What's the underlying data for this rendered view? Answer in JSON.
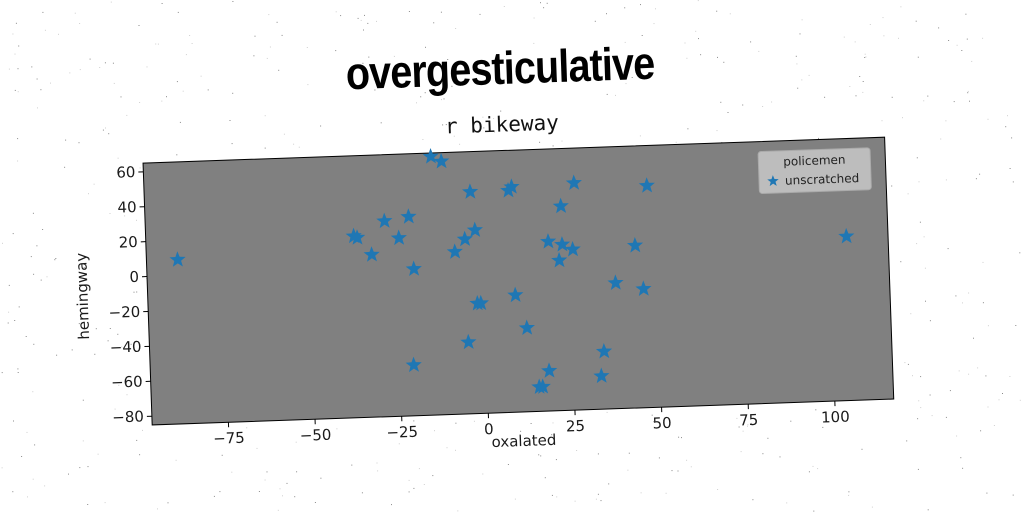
{
  "suptitle": "overgesticulative",
  "chart_data": {
    "type": "scatter",
    "title": "r bikeway",
    "xlabel": "oxalated",
    "ylabel": "hemingway",
    "xlim": [
      -97,
      117
    ],
    "ylim": [
      -85,
      65
    ],
    "xticks": [
      -75,
      -50,
      -25,
      0,
      25,
      50,
      75,
      100
    ],
    "xtick_labels": [
      "−75",
      "−50",
      "−25",
      "0",
      "25",
      "50",
      "75",
      "100"
    ],
    "yticks": [
      -80,
      -60,
      -40,
      -20,
      0,
      20,
      40,
      60
    ],
    "ytick_labels": [
      "−80",
      "−60",
      "−40",
      "−20",
      "0",
      "20",
      "40",
      "60"
    ],
    "grid": false,
    "legend": {
      "title": "policemen",
      "placement": "top-right"
    },
    "colors": {
      "marker": "#1f77b4",
      "axes_bg": "#808080"
    },
    "series": [
      {
        "name": "unscratched",
        "marker": "star",
        "points": [
          {
            "x": -88,
            "y": 9
          },
          {
            "x": -37,
            "y": 19
          },
          {
            "x": -36,
            "y": 18
          },
          {
            "x": -32,
            "y": 8
          },
          {
            "x": -28,
            "y": 27
          },
          {
            "x": -24,
            "y": 17
          },
          {
            "x": -21,
            "y": 29
          },
          {
            "x": -20,
            "y": -1
          },
          {
            "x": -21,
            "y": -56
          },
          {
            "x": -14,
            "y": 63
          },
          {
            "x": -11,
            "y": 60
          },
          {
            "x": -8,
            "y": 8
          },
          {
            "x": -5,
            "y": 15
          },
          {
            "x": -5,
            "y": -44
          },
          {
            "x": -3,
            "y": 42
          },
          {
            "x": -2,
            "y": 20
          },
          {
            "x": -2,
            "y": -22
          },
          {
            "x": -1,
            "y": -22
          },
          {
            "x": 8,
            "y": 42
          },
          {
            "x": 9,
            "y": 44
          },
          {
            "x": 9,
            "y": -18
          },
          {
            "x": 12,
            "y": -37
          },
          {
            "x": 15,
            "y": -71
          },
          {
            "x": 16,
            "y": -71
          },
          {
            "x": 18,
            "y": -62
          },
          {
            "x": 19,
            "y": 12
          },
          {
            "x": 22,
            "y": 1
          },
          {
            "x": 23,
            "y": 10
          },
          {
            "x": 23,
            "y": 32
          },
          {
            "x": 26,
            "y": 7
          },
          {
            "x": 27,
            "y": 45
          },
          {
            "x": 33,
            "y": -66
          },
          {
            "x": 34,
            "y": -52
          },
          {
            "x": 38,
            "y": -13
          },
          {
            "x": 44,
            "y": 8
          },
          {
            "x": 46,
            "y": -17
          },
          {
            "x": 48,
            "y": 42
          },
          {
            "x": 105,
            "y": 9
          }
        ]
      }
    ]
  }
}
